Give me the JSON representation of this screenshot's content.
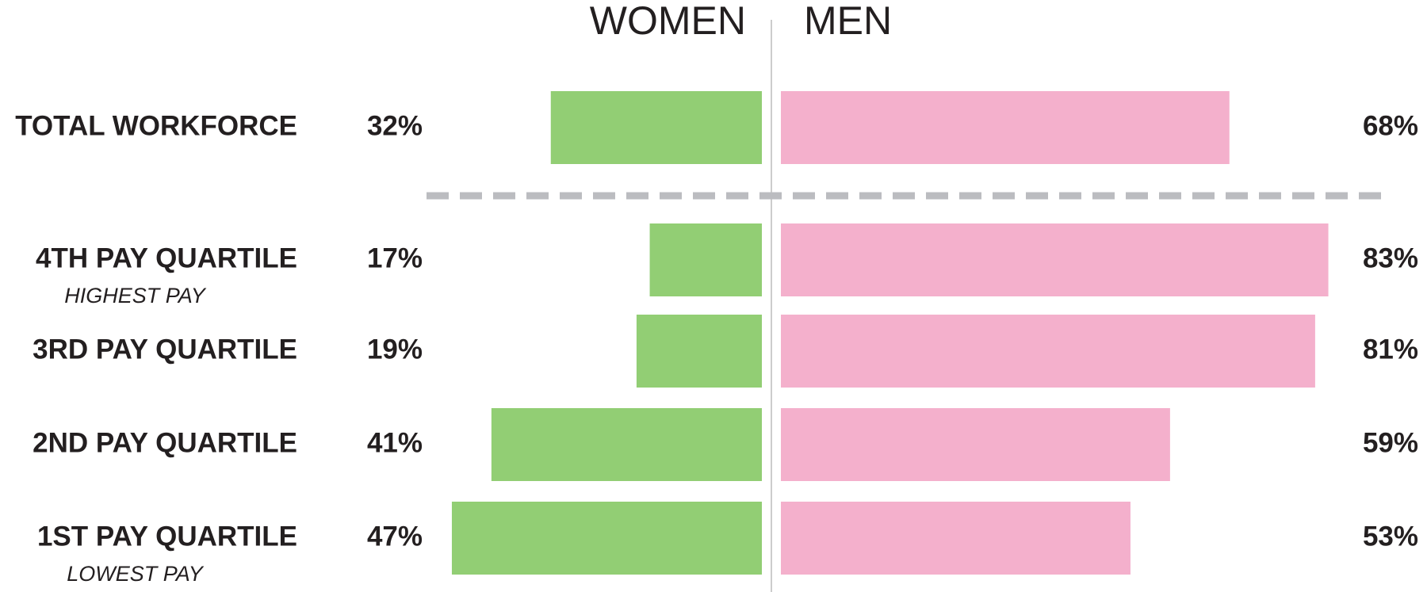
{
  "chart_data": {
    "type": "bar",
    "categories": [
      "TOTAL WORKFORCE",
      "4TH PAY QUARTILE",
      "3RD PAY QUARTILE",
      "2ND PAY QUARTILE",
      "1ST PAY QUARTILE"
    ],
    "sublabels": [
      null,
      "HIGHEST PAY",
      null,
      null,
      "LOWEST PAY"
    ],
    "series": [
      {
        "name": "WOMEN",
        "color": "#92ce74",
        "values": [
          32,
          17,
          19,
          41,
          47
        ],
        "value_labels": [
          "32%",
          "17%",
          "19%",
          "41%",
          "47%"
        ]
      },
      {
        "name": "MEN",
        "color": "#f4b0cc",
        "values": [
          68,
          83,
          81,
          59,
          53
        ],
        "value_labels": [
          "68%",
          "83%",
          "81%",
          "59%",
          "53%"
        ]
      }
    ]
  }
}
